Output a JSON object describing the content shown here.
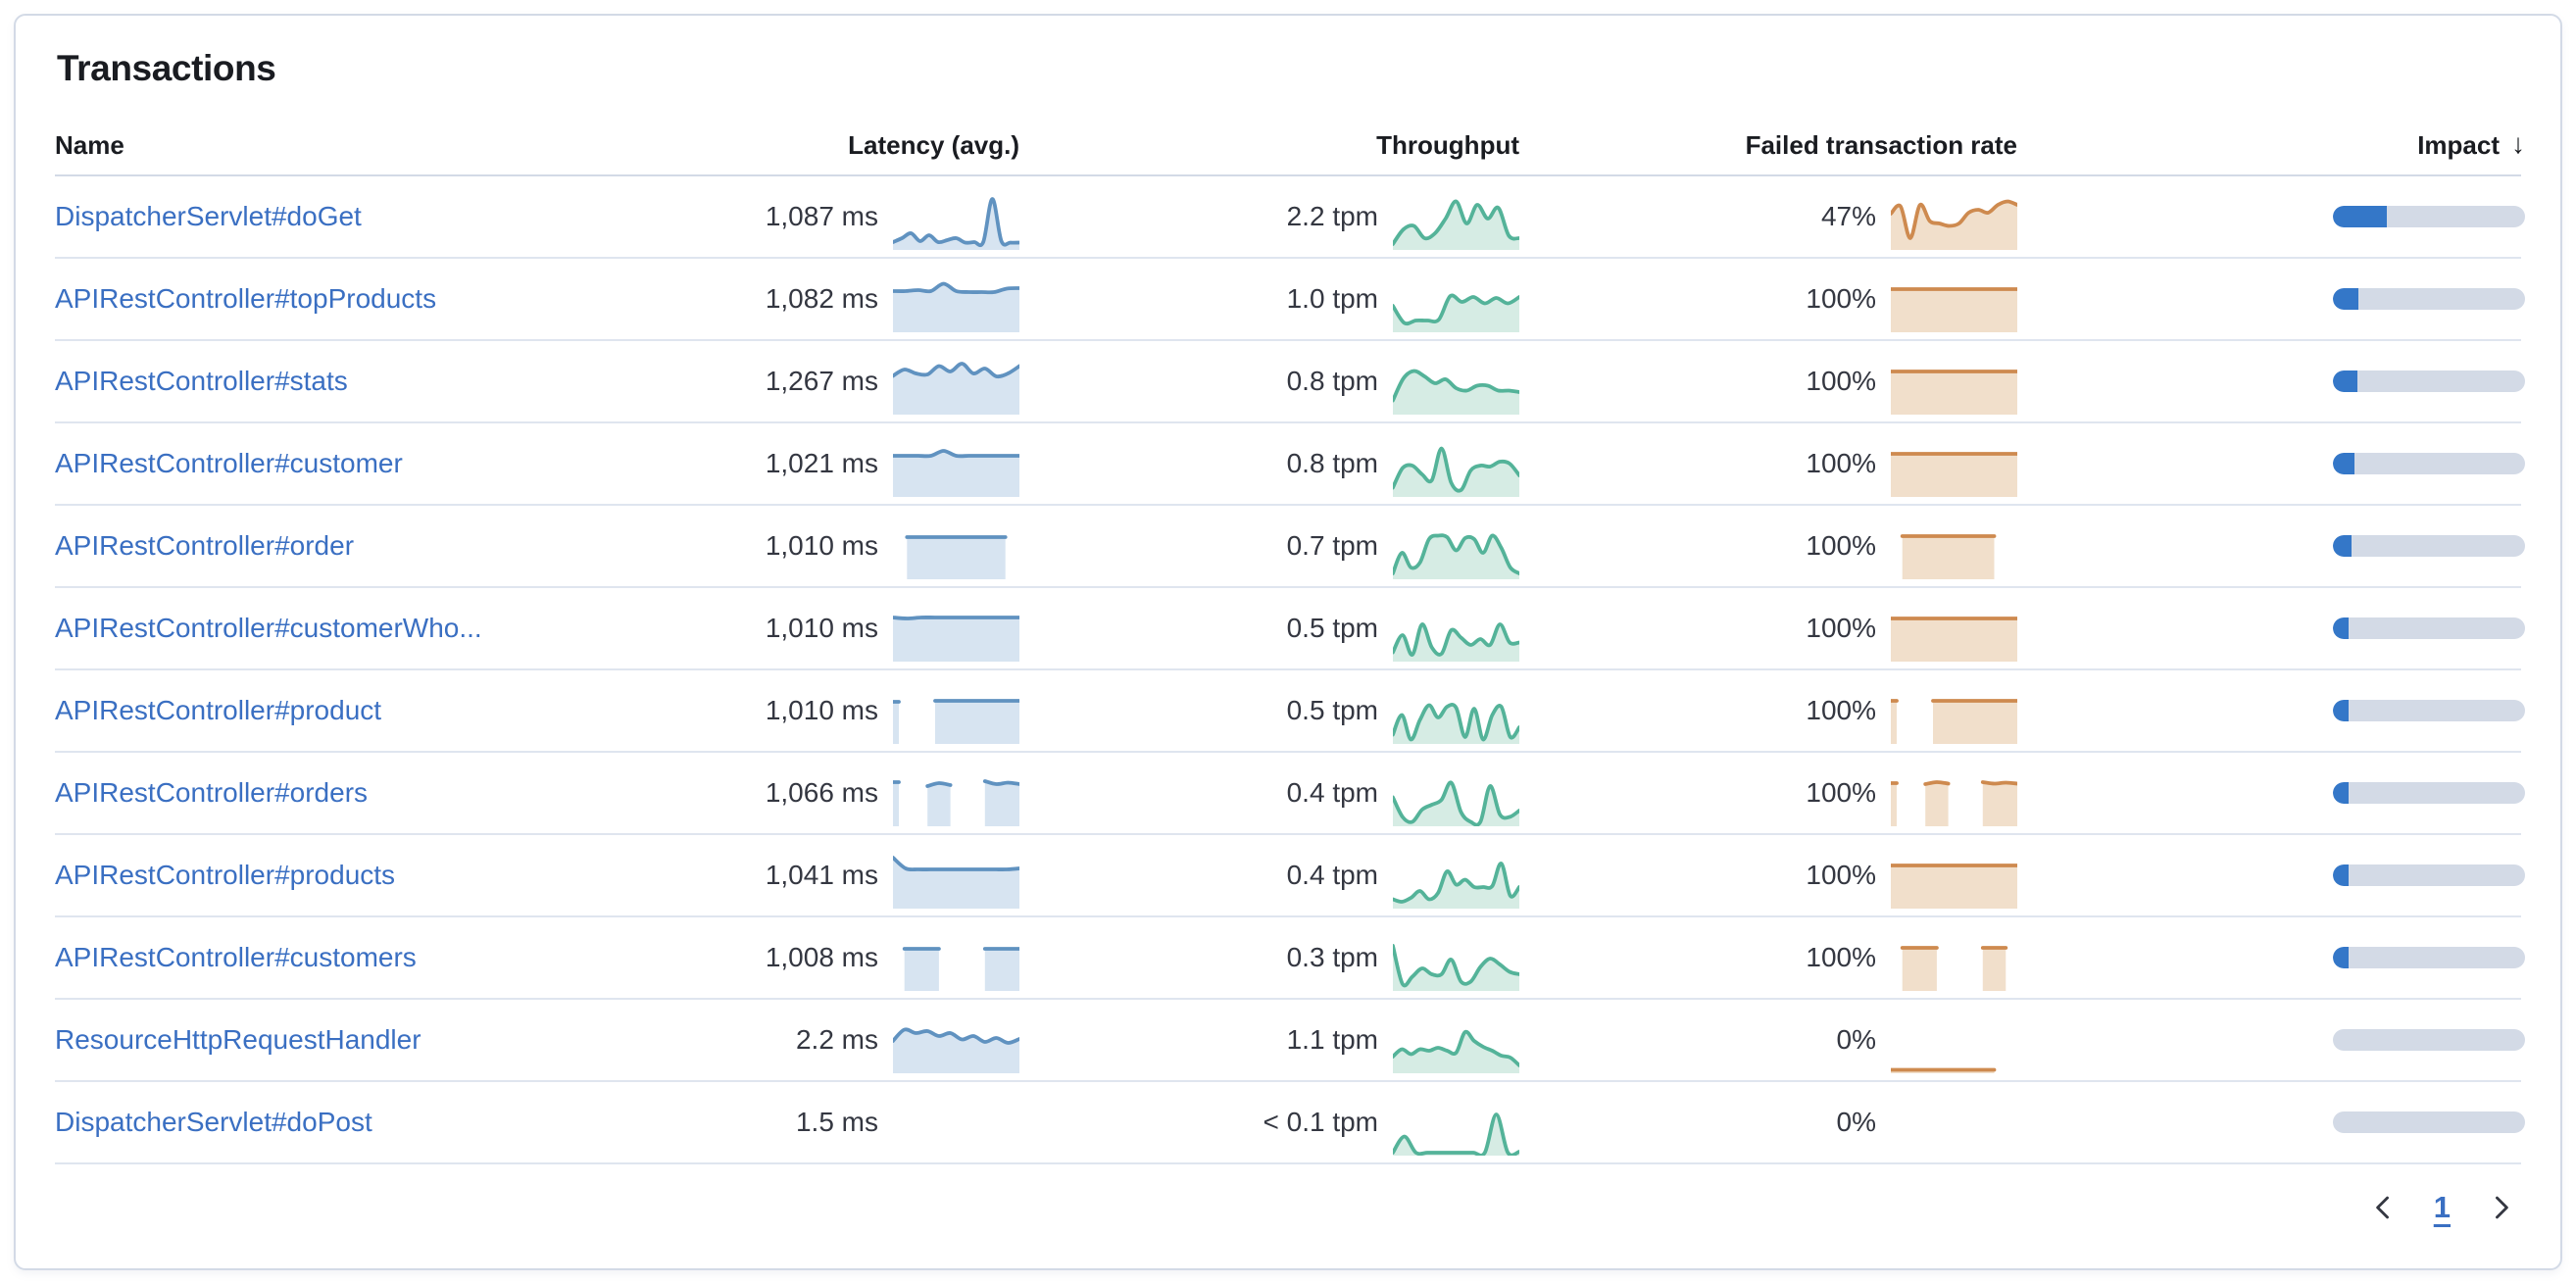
{
  "panel": {
    "title": "Transactions"
  },
  "colors": {
    "link": "#3A6FC2",
    "impact_fill": "#3477C8",
    "impact_track": "#D3DAE6",
    "latency_line": "#6092C0",
    "latency_fill": "#D7E4F1",
    "throughput_line": "#54B399",
    "throughput_fill": "#D6ECE4",
    "failed_line": "#CE8A4F",
    "failed_fill": "#F1DFCB",
    "chevron": "#343741"
  },
  "table": {
    "columns": [
      "Name",
      "Latency (avg.)",
      "Throughput",
      "Failed transaction rate",
      "Impact"
    ],
    "sort_column": "Impact",
    "sort_direction": "descending",
    "rows": [
      {
        "name": "DispatcherServlet#doGet",
        "latency": "1,087 ms",
        "throughput": "2.2 tpm",
        "failed_rate": "47%",
        "impact_pct": 28,
        "latency_spark": [
          0.12,
          0.2,
          0.3,
          0.14,
          0.26,
          0.12,
          0.16,
          0.2,
          0.11,
          0.12,
          0.12,
          1.0,
          0.14,
          0.11,
          0.11
        ],
        "throughput_spark": [
          0.08,
          0.38,
          0.45,
          0.2,
          0.3,
          0.6,
          0.95,
          0.5,
          0.88,
          0.6,
          0.82,
          0.25,
          0.2
        ],
        "failed_spark": [
          0.7,
          0.85,
          0.2,
          0.88,
          0.55,
          0.5,
          0.45,
          0.5,
          0.72,
          0.78,
          0.72,
          0.88,
          0.95,
          0.88
        ]
      },
      {
        "name": "APIRestController#topProducts",
        "latency": "1,082 ms",
        "throughput": "1.0 tpm",
        "failed_rate": "100%",
        "impact_pct": 13,
        "latency_spark": [
          0.8,
          0.8,
          0.82,
          0.8,
          0.95,
          0.8,
          0.78,
          0.78,
          0.78,
          0.85,
          0.86
        ],
        "throughput_spark": [
          0.5,
          0.15,
          0.2,
          0.2,
          0.22,
          0.7,
          0.58,
          0.68,
          0.55,
          0.66,
          0.55,
          0.68
        ],
        "failed_spark": [
          0.84,
          0.84,
          0.84,
          0.84,
          0.84,
          0.84,
          0.84,
          0.84,
          0.84,
          0.84
        ]
      },
      {
        "name": "APIRestController#stats",
        "latency": "1,267 ms",
        "throughput": "0.8 tpm",
        "failed_rate": "100%",
        "impact_pct": 12.5,
        "latency_spark": [
          0.75,
          0.88,
          0.8,
          0.78,
          0.95,
          0.84,
          1.0,
          0.8,
          0.9,
          0.74,
          0.8,
          0.95
        ],
        "throughput_spark": [
          0.25,
          0.7,
          0.85,
          0.74,
          0.6,
          0.68,
          0.5,
          0.45,
          0.55,
          0.55,
          0.45,
          0.45,
          0.42
        ],
        "failed_spark": [
          0.84,
          0.84,
          0.84,
          0.84,
          0.84,
          0.84,
          0.84,
          0.84,
          0.84,
          0.84
        ]
      },
      {
        "name": "APIRestController#customer",
        "latency": "1,021 ms",
        "throughput": "0.8 tpm",
        "failed_rate": "100%",
        "impact_pct": 11,
        "latency_spark": [
          0.8,
          0.8,
          0.8,
          0.8,
          0.9,
          0.8,
          0.8,
          0.8,
          0.8,
          0.8,
          0.8
        ],
        "throughput_spark": [
          0.15,
          0.55,
          0.6,
          0.42,
          0.3,
          0.95,
          0.25,
          0.1,
          0.5,
          0.6,
          0.58,
          0.68,
          0.64,
          0.4
        ],
        "failed_spark": [
          0.84,
          0.84,
          0.84,
          0.84,
          0.84,
          0.84,
          0.84,
          0.84,
          0.84,
          0.84
        ]
      },
      {
        "name": "APIRestController#order",
        "latency": "1,010 ms",
        "throughput": "0.7 tpm",
        "failed_rate": "100%",
        "impact_pct": 9.5,
        "latency_spark": [
          null,
          0.82,
          0.82,
          0.82,
          0.82,
          0.82,
          0.82,
          0.82,
          0.82,
          null
        ],
        "throughput_spark": [
          0.08,
          0.5,
          0.2,
          0.3,
          0.78,
          0.85,
          0.82,
          0.55,
          0.8,
          0.78,
          0.5,
          0.85,
          0.6,
          0.2,
          0.08
        ],
        "failed_spark": [
          null,
          0.84,
          0.84,
          0.84,
          0.84,
          0.84,
          0.84,
          0.84,
          0.84,
          0.84,
          null,
          null
        ]
      },
      {
        "name": "APIRestController#customerWho...",
        "latency": "1,010 ms",
        "throughput": "0.5 tpm",
        "failed_rate": "100%",
        "impact_pct": 8,
        "latency_spark": [
          0.86,
          0.84,
          0.86,
          0.86,
          0.86,
          0.86,
          0.86,
          0.86,
          0.86,
          0.86
        ],
        "throughput_spark": [
          0.15,
          0.5,
          0.1,
          0.72,
          0.25,
          0.12,
          0.6,
          0.45,
          0.3,
          0.42,
          0.3,
          0.72,
          0.35,
          0.35
        ],
        "failed_spark": [
          0.84,
          0.84,
          0.84,
          0.84,
          0.84,
          0.84,
          0.84,
          0.84,
          0.84,
          0.84
        ]
      },
      {
        "name": "APIRestController#product",
        "latency": "1,010 ms",
        "throughput": "0.5 tpm",
        "failed_rate": "100%",
        "impact_pct": 7,
        "latency_spark": [
          0.82,
          null,
          null,
          0.84,
          0.84,
          0.84,
          0.84,
          0.84,
          0.84,
          0.84
        ],
        "throughput_spark": [
          0.15,
          0.55,
          0.05,
          0.45,
          0.75,
          0.5,
          0.72,
          0.7,
          0.1,
          0.68,
          0.05,
          0.55,
          0.72,
          0.1,
          0.3
        ],
        "failed_spark": [
          0.84,
          null,
          null,
          0.84,
          0.84,
          0.84,
          0.84,
          0.84,
          0.84,
          0.84
        ]
      },
      {
        "name": "APIRestController#orders",
        "latency": "1,066 ms",
        "throughput": "0.4 tpm",
        "failed_rate": "100%",
        "impact_pct": 6.5,
        "latency_spark": [
          0.86,
          null,
          null,
          0.78,
          0.84,
          0.8,
          null,
          null,
          0.88,
          0.82,
          0.85,
          0.82
        ],
        "throughput_spark": [
          0.55,
          0.15,
          0.05,
          0.3,
          0.4,
          0.5,
          0.85,
          0.25,
          0.05,
          0.05,
          0.78,
          0.2,
          0.15,
          0.28
        ],
        "failed_spark": [
          0.84,
          null,
          null,
          0.82,
          0.86,
          0.83,
          null,
          null,
          0.86,
          0.83,
          0.85,
          0.83
        ]
      },
      {
        "name": "APIRestController#products",
        "latency": "1,041 ms",
        "throughput": "0.4 tpm",
        "failed_rate": "100%",
        "impact_pct": 5.5,
        "latency_spark": [
          1.0,
          0.78,
          0.76,
          0.76,
          0.76,
          0.76,
          0.76,
          0.76,
          0.76,
          0.76,
          0.78
        ],
        "throughput_spark": [
          0.15,
          0.1,
          0.18,
          0.32,
          0.15,
          0.28,
          0.72,
          0.45,
          0.55,
          0.4,
          0.4,
          0.42,
          0.88,
          0.22,
          0.4
        ],
        "failed_spark": [
          0.84,
          0.84,
          0.84,
          0.84,
          0.84,
          0.84,
          0.84,
          0.84,
          0.84,
          0.84
        ]
      },
      {
        "name": "APIRestController#customers",
        "latency": "1,008 ms",
        "throughput": "0.3 tpm",
        "failed_rate": "100%",
        "impact_pct": 4.5,
        "latency_spark": [
          null,
          0.82,
          0.82,
          0.82,
          0.82,
          null,
          null,
          null,
          0.82,
          0.82,
          0.82,
          0.82
        ],
        "throughput_spark": [
          0.88,
          0.1,
          0.25,
          0.42,
          0.3,
          0.3,
          0.6,
          0.15,
          0.15,
          0.45,
          0.62,
          0.5,
          0.35,
          0.3
        ],
        "failed_spark": [
          null,
          0.84,
          0.84,
          0.84,
          0.84,
          null,
          null,
          null,
          0.84,
          0.84,
          0.84,
          null
        ]
      },
      {
        "name": "ResourceHttpRequestHandler",
        "latency": "2.2 ms",
        "throughput": "1.1 tpm",
        "failed_rate": "0%",
        "impact_pct": 0,
        "latency_spark": [
          0.62,
          0.85,
          0.78,
          0.82,
          0.72,
          0.78,
          0.65,
          0.72,
          0.6,
          0.68,
          0.58,
          0.66
        ],
        "throughput_spark": [
          0.3,
          0.45,
          0.35,
          0.45,
          0.42,
          0.48,
          0.42,
          0.38,
          0.8,
          0.62,
          0.5,
          0.42,
          0.32,
          0.28,
          0.12
        ],
        "failed_spark": [
          0.03,
          0.03,
          0.03,
          0.03,
          0.03,
          0.03,
          0.03,
          0.03,
          0.03,
          0.03,
          null,
          null
        ]
      },
      {
        "name": "DispatcherServlet#doPost",
        "latency": "1.5 ms",
        "throughput": "< 0.1 tpm",
        "failed_rate": "0%",
        "impact_pct": 0,
        "latency_spark": [],
        "throughput_spark": [
          0.02,
          0.35,
          0.02,
          0.02,
          0.02,
          0.02,
          0.02,
          0.02,
          0.02,
          0.8,
          0.02,
          0.04
        ],
        "failed_spark": []
      }
    ]
  },
  "pagination": {
    "current_page": "1"
  }
}
